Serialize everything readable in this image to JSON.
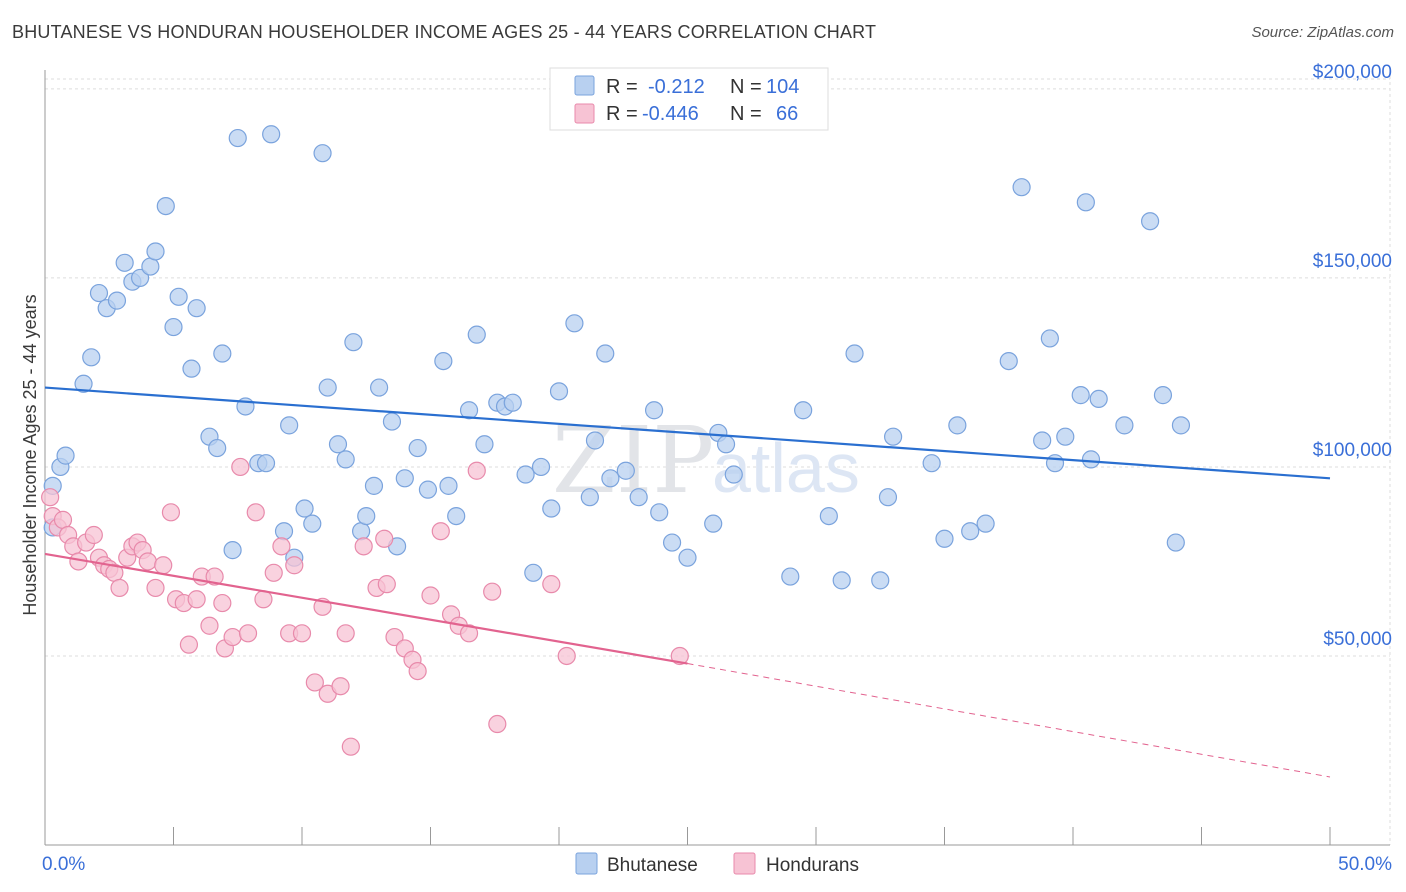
{
  "title": "BHUTANESE VS HONDURAN HOUSEHOLDER INCOME AGES 25 - 44 YEARS CORRELATION CHART",
  "source": "Source: ZipAtlas.com",
  "watermark": {
    "part1": "ZIP",
    "part2": "atlas"
  },
  "colors": {
    "blue_fill": "#b8d0f0",
    "blue_stroke": "#7aa3dd",
    "blue_line": "#2a6fd0",
    "pink_fill": "#f7c3d4",
    "pink_stroke": "#e88aab",
    "pink_line": "#e2638f",
    "accent_text": "#3a6fd8",
    "grid": "#dddddd"
  },
  "legend": {
    "rows": [
      {
        "r_label": "R =",
        "r_value": "-0.212",
        "n_label": "N =",
        "n_value": "104",
        "series": "blue"
      },
      {
        "r_label": "R =",
        "r_value": "-0.446",
        "n_label": "N =",
        "n_value": "66",
        "series": "pink"
      }
    ]
  },
  "bottom_legend": [
    "Bhutanese",
    "Hondurans"
  ],
  "chart_data": {
    "type": "scatter",
    "title": "BHUTANESE VS HONDURAN HOUSEHOLDER INCOME AGES 25 - 44 YEARS CORRELATION CHART",
    "xlabel": "",
    "ylabel": "Householder Income Ages 25 - 44 years",
    "xlim": [
      0,
      50
    ],
    "ylim": [
      0,
      205000
    ],
    "x_tick_labels": [
      "0.0%",
      "50.0%"
    ],
    "y_ticks": [
      50000,
      100000,
      150000,
      200000
    ],
    "y_tick_labels": [
      "$50,000",
      "$100,000",
      "$150,000",
      "$200,000"
    ],
    "grid": true,
    "legend_position": "top-center",
    "series": [
      {
        "name": "Bhutanese",
        "color": "blue",
        "trend": {
          "x0": 0,
          "y0": 121000,
          "x1": 50,
          "y1": 97000,
          "dashed_from": null
        },
        "points": [
          [
            0.3,
            95000
          ],
          [
            0.3,
            84000
          ],
          [
            0.6,
            100000
          ],
          [
            0.8,
            103000
          ],
          [
            1.5,
            122000
          ],
          [
            1.8,
            129000
          ],
          [
            2.1,
            146000
          ],
          [
            2.4,
            142000
          ],
          [
            2.8,
            144000
          ],
          [
            3.1,
            154000
          ],
          [
            3.4,
            149000
          ],
          [
            3.7,
            150000
          ],
          [
            4.1,
            153000
          ],
          [
            4.3,
            157000
          ],
          [
            4.7,
            169000
          ],
          [
            5.0,
            137000
          ],
          [
            5.2,
            145000
          ],
          [
            5.7,
            126000
          ],
          [
            5.9,
            142000
          ],
          [
            6.4,
            108000
          ],
          [
            6.7,
            105000
          ],
          [
            6.9,
            130000
          ],
          [
            7.3,
            78000
          ],
          [
            7.5,
            187000
          ],
          [
            7.8,
            116000
          ],
          [
            8.3,
            101000
          ],
          [
            8.6,
            101000
          ],
          [
            8.8,
            188000
          ],
          [
            9.3,
            83000
          ],
          [
            9.5,
            111000
          ],
          [
            9.7,
            76000
          ],
          [
            10.1,
            89000
          ],
          [
            10.4,
            85000
          ],
          [
            10.8,
            183000
          ],
          [
            11.0,
            121000
          ],
          [
            11.4,
            106000
          ],
          [
            11.7,
            102000
          ],
          [
            12.0,
            133000
          ],
          [
            12.3,
            83000
          ],
          [
            12.5,
            87000
          ],
          [
            12.8,
            95000
          ],
          [
            13.0,
            121000
          ],
          [
            13.5,
            112000
          ],
          [
            13.7,
            79000
          ],
          [
            14.0,
            97000
          ],
          [
            14.5,
            105000
          ],
          [
            14.9,
            94000
          ],
          [
            15.5,
            128000
          ],
          [
            15.7,
            95000
          ],
          [
            16.0,
            87000
          ],
          [
            16.5,
            115000
          ],
          [
            16.8,
            135000
          ],
          [
            17.1,
            106000
          ],
          [
            17.6,
            117000
          ],
          [
            17.9,
            116000
          ],
          [
            18.2,
            117000
          ],
          [
            18.7,
            98000
          ],
          [
            19.0,
            72000
          ],
          [
            19.3,
            100000
          ],
          [
            19.7,
            89000
          ],
          [
            20.0,
            120000
          ],
          [
            20.6,
            138000
          ],
          [
            21.2,
            92000
          ],
          [
            21.4,
            107000
          ],
          [
            21.8,
            130000
          ],
          [
            22.0,
            97000
          ],
          [
            22.6,
            99000
          ],
          [
            23.1,
            92000
          ],
          [
            23.7,
            115000
          ],
          [
            23.9,
            88000
          ],
          [
            24.4,
            80000
          ],
          [
            25.0,
            76000
          ],
          [
            26.0,
            85000
          ],
          [
            26.2,
            109000
          ],
          [
            26.5,
            106000
          ],
          [
            26.8,
            98000
          ],
          [
            29.0,
            71000
          ],
          [
            29.5,
            115000
          ],
          [
            30.5,
            87000
          ],
          [
            31.0,
            70000
          ],
          [
            31.5,
            130000
          ],
          [
            32.5,
            70000
          ],
          [
            32.8,
            92000
          ],
          [
            33.0,
            108000
          ],
          [
            34.5,
            101000
          ],
          [
            35.0,
            81000
          ],
          [
            35.5,
            111000
          ],
          [
            36.0,
            83000
          ],
          [
            36.6,
            85000
          ],
          [
            37.5,
            128000
          ],
          [
            38.0,
            174000
          ],
          [
            38.8,
            107000
          ],
          [
            39.1,
            134000
          ],
          [
            39.3,
            101000
          ],
          [
            39.7,
            108000
          ],
          [
            40.3,
            119000
          ],
          [
            40.7,
            102000
          ],
          [
            40.5,
            170000
          ],
          [
            41.0,
            118000
          ],
          [
            42.0,
            111000
          ],
          [
            43.0,
            165000
          ],
          [
            43.5,
            119000
          ],
          [
            44.0,
            80000
          ],
          [
            44.2,
            111000
          ]
        ]
      },
      {
        "name": "Hondurans",
        "color": "pink",
        "trend": {
          "x0": 0,
          "y0": 77000,
          "x1": 25,
          "y1": 48000,
          "dashed_to_x": 50,
          "dashed_to_y": 18000
        },
        "points": [
          [
            0.2,
            92000
          ],
          [
            0.3,
            87000
          ],
          [
            0.5,
            84000
          ],
          [
            0.7,
            86000
          ],
          [
            0.9,
            82000
          ],
          [
            1.1,
            79000
          ],
          [
            1.3,
            75000
          ],
          [
            1.6,
            80000
          ],
          [
            1.9,
            82000
          ],
          [
            2.1,
            76000
          ],
          [
            2.3,
            74000
          ],
          [
            2.5,
            73000
          ],
          [
            2.7,
            72000
          ],
          [
            2.9,
            68000
          ],
          [
            3.2,
            76000
          ],
          [
            3.4,
            79000
          ],
          [
            3.6,
            80000
          ],
          [
            3.8,
            78000
          ],
          [
            4.0,
            75000
          ],
          [
            4.3,
            68000
          ],
          [
            4.6,
            74000
          ],
          [
            4.9,
            88000
          ],
          [
            5.1,
            65000
          ],
          [
            5.4,
            64000
          ],
          [
            5.6,
            53000
          ],
          [
            5.9,
            65000
          ],
          [
            6.1,
            71000
          ],
          [
            6.4,
            58000
          ],
          [
            6.6,
            71000
          ],
          [
            6.9,
            64000
          ],
          [
            7.0,
            52000
          ],
          [
            7.3,
            55000
          ],
          [
            7.6,
            100000
          ],
          [
            7.9,
            56000
          ],
          [
            8.2,
            88000
          ],
          [
            8.5,
            65000
          ],
          [
            8.9,
            72000
          ],
          [
            9.2,
            79000
          ],
          [
            9.5,
            56000
          ],
          [
            9.7,
            74000
          ],
          [
            10.0,
            56000
          ],
          [
            10.5,
            43000
          ],
          [
            10.8,
            63000
          ],
          [
            11.0,
            40000
          ],
          [
            11.5,
            42000
          ],
          [
            11.7,
            56000
          ],
          [
            11.9,
            26000
          ],
          [
            12.4,
            79000
          ],
          [
            12.9,
            68000
          ],
          [
            13.2,
            81000
          ],
          [
            13.3,
            69000
          ],
          [
            13.6,
            55000
          ],
          [
            14.0,
            52000
          ],
          [
            14.3,
            49000
          ],
          [
            14.5,
            46000
          ],
          [
            15.0,
            66000
          ],
          [
            15.4,
            83000
          ],
          [
            15.8,
            61000
          ],
          [
            16.1,
            58000
          ],
          [
            16.5,
            56000
          ],
          [
            16.8,
            99000
          ],
          [
            17.4,
            67000
          ],
          [
            17.6,
            32000
          ],
          [
            19.7,
            69000
          ],
          [
            20.3,
            50000
          ],
          [
            24.7,
            50000
          ]
        ]
      }
    ]
  }
}
